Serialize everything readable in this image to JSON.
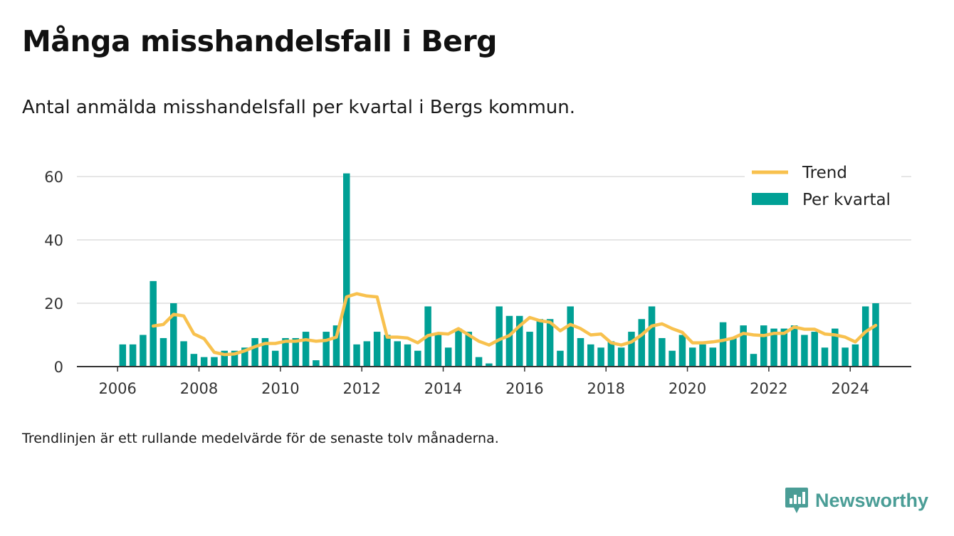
{
  "header": {
    "title": "Många misshandelsfall i Berg",
    "subtitle": "Antal anmälda misshandelsfall per kvartal i Bergs kommun."
  },
  "footer": {
    "note": "Trendlinjen är ett rullande medelvärde för de senaste tolv månaderna.",
    "brand": "Newsworthy",
    "brand_icon": "bar-chart-speech-bubble-icon"
  },
  "colors": {
    "bars": "#00a095",
    "trend": "#f8c14e",
    "grid": "#dddddd",
    "axis": "#333333",
    "brand": "#4a9d96"
  },
  "chart_data": {
    "type": "bar",
    "title": "",
    "xlabel": "",
    "ylabel": "",
    "ylim": [
      0,
      70
    ],
    "yticks": [
      0,
      20,
      40,
      60
    ],
    "xticks": [
      "2006",
      "2008",
      "2010",
      "2012",
      "2014",
      "2016",
      "2018",
      "2020",
      "2022",
      "2024"
    ],
    "xlim": [
      "2005-01",
      "2025-07"
    ],
    "grid": true,
    "legend_position": "top-right",
    "categories": [
      "2006-Q1",
      "2006-Q2",
      "2006-Q3",
      "2006-Q4",
      "2007-Q1",
      "2007-Q2",
      "2007-Q3",
      "2007-Q4",
      "2008-Q1",
      "2008-Q2",
      "2008-Q3",
      "2008-Q4",
      "2009-Q1",
      "2009-Q2",
      "2009-Q3",
      "2009-Q4",
      "2010-Q1",
      "2010-Q2",
      "2010-Q3",
      "2010-Q4",
      "2011-Q1",
      "2011-Q2",
      "2011-Q3",
      "2011-Q4",
      "2012-Q1",
      "2012-Q2",
      "2012-Q3",
      "2012-Q4",
      "2013-Q1",
      "2013-Q2",
      "2013-Q3",
      "2013-Q4",
      "2014-Q1",
      "2014-Q2",
      "2014-Q3",
      "2014-Q4",
      "2015-Q1",
      "2015-Q2",
      "2015-Q3",
      "2015-Q4",
      "2016-Q1",
      "2016-Q2",
      "2016-Q3",
      "2016-Q4",
      "2017-Q1",
      "2017-Q2",
      "2017-Q3",
      "2017-Q4",
      "2018-Q1",
      "2018-Q2",
      "2018-Q3",
      "2018-Q4",
      "2019-Q1",
      "2019-Q2",
      "2019-Q3",
      "2019-Q4",
      "2020-Q1",
      "2020-Q2",
      "2020-Q3",
      "2020-Q4",
      "2021-Q1",
      "2021-Q2",
      "2021-Q3",
      "2021-Q4",
      "2022-Q1",
      "2022-Q2",
      "2022-Q3",
      "2022-Q4",
      "2023-Q1",
      "2023-Q2",
      "2023-Q3",
      "2023-Q4",
      "2024-Q1",
      "2024-Q2",
      "2024-Q3"
    ],
    "series": [
      {
        "name": "Per kvartal",
        "type": "bar",
        "values": [
          7,
          7,
          10,
          27,
          9,
          20,
          8,
          4,
          3,
          3,
          5,
          5,
          6,
          9,
          9,
          5,
          9,
          9,
          11,
          2,
          11,
          13,
          61,
          7,
          8,
          11,
          10,
          8,
          7,
          5,
          19,
          10,
          6,
          12,
          11,
          3,
          1,
          19,
          16,
          16,
          11,
          15,
          15,
          5,
          19,
          9,
          7,
          6,
          8,
          6,
          11,
          15,
          19,
          9,
          5,
          10,
          6,
          7,
          6,
          14,
          9,
          13,
          4,
          13,
          12,
          12,
          13,
          10,
          11,
          6,
          12,
          6,
          7,
          19,
          20
        ]
      },
      {
        "name": "Trend",
        "type": "line",
        "values": [
          null,
          null,
          null,
          12.8,
          13.3,
          16.5,
          16.0,
          10.3,
          8.8,
          4.5,
          3.8,
          4.0,
          5.0,
          6.3,
          7.3,
          7.3,
          8.0,
          8.0,
          8.5,
          8.0,
          8.3,
          9.3,
          22.0,
          23.0,
          22.3,
          22.0,
          9.3,
          9.3,
          9.0,
          7.5,
          9.8,
          10.5,
          10.3,
          12.0,
          10.0,
          8.0,
          6.8,
          8.5,
          9.8,
          12.8,
          15.5,
          14.5,
          14.0,
          11.3,
          13.3,
          12.0,
          10.0,
          10.3,
          7.5,
          6.8,
          7.8,
          10.0,
          12.8,
          13.5,
          12.0,
          10.8,
          7.5,
          7.5,
          7.8,
          8.3,
          9.0,
          10.5,
          10.0,
          9.8,
          10.5,
          10.5,
          12.5,
          11.8,
          11.8,
          10.3,
          10.0,
          9.3,
          7.8,
          11.0,
          13.0
        ]
      }
    ]
  }
}
